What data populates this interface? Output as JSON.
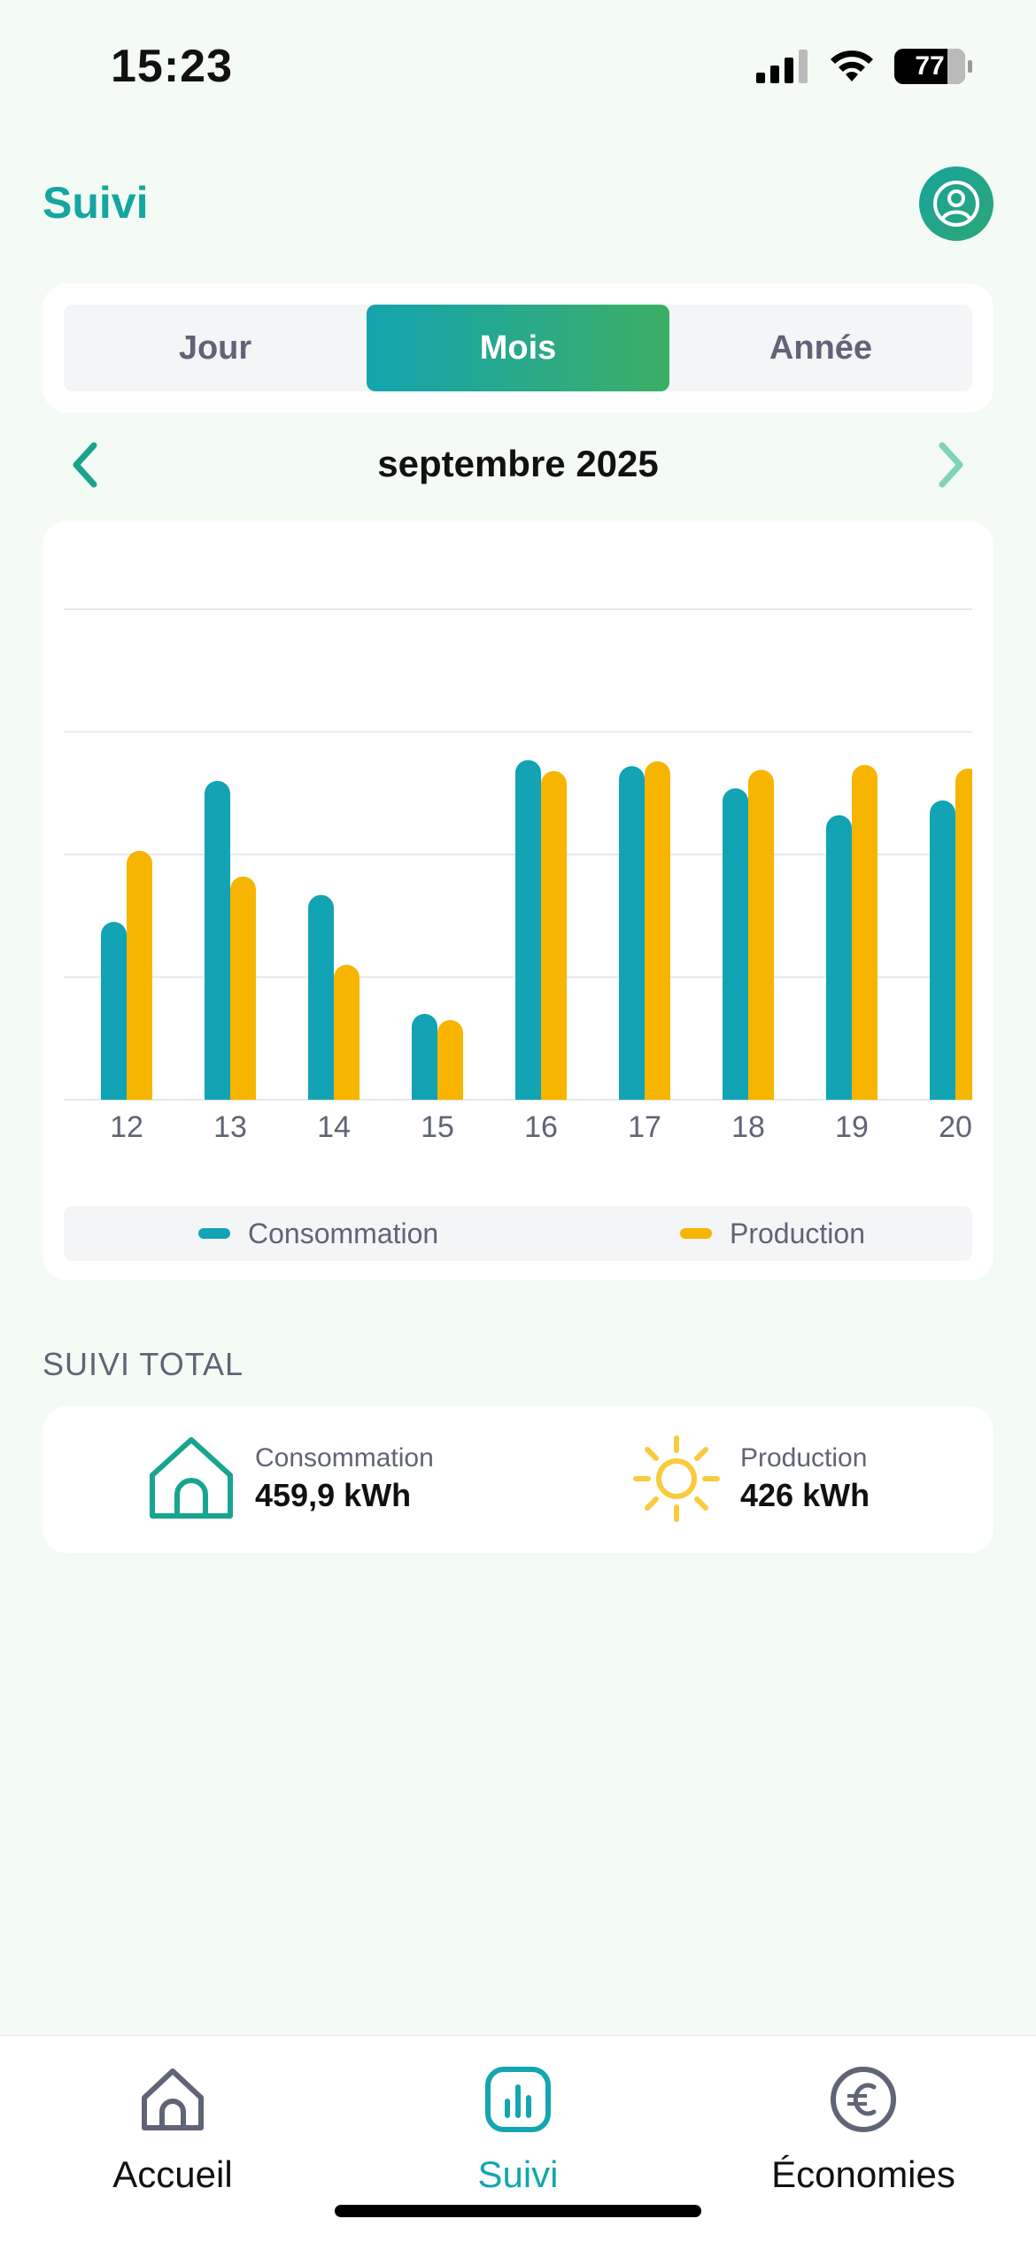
{
  "status": {
    "time": "15:23",
    "battery": "77"
  },
  "header": {
    "title": "Suivi",
    "profile_icon": "user-circle-icon"
  },
  "segments": [
    {
      "label": "Jour",
      "active": false
    },
    {
      "label": "Mois",
      "active": true
    },
    {
      "label": "Année",
      "active": false
    }
  ],
  "period": {
    "label": "septembre 2025"
  },
  "chart_data": {
    "type": "bar",
    "categories": [
      "12",
      "13",
      "14",
      "15",
      "16",
      "17",
      "18",
      "19",
      "20"
    ],
    "series": [
      {
        "name": "Consommation",
        "color": "#12a3b5",
        "values": [
          14.5,
          26,
          16.7,
          7.0,
          27.7,
          27.2,
          25.4,
          23.2,
          24.4
        ]
      },
      {
        "name": "Production",
        "color": "#f7b500",
        "values": [
          20.3,
          18.2,
          11.0,
          6.5,
          26.8,
          27.6,
          26.9,
          27.3,
          27.0
        ]
      }
    ],
    "ylim": [
      0,
      40
    ],
    "grid": true,
    "legend": "bottom"
  },
  "legend": {
    "consumption": "Consommation",
    "production": "Production",
    "consumption_color": "#12a3b5",
    "production_color": "#f7b500"
  },
  "total": {
    "section_title": "SUIVI TOTAL",
    "consumption_label": "Consommation",
    "consumption_value": "459,9 kWh",
    "production_label": "Production",
    "production_value": "426 kWh"
  },
  "tabs": [
    {
      "label": "Accueil",
      "icon": "home-icon",
      "active": false
    },
    {
      "label": "Suivi",
      "icon": "chart-icon",
      "active": true
    },
    {
      "label": "Économies",
      "icon": "euro-icon",
      "active": false
    }
  ]
}
